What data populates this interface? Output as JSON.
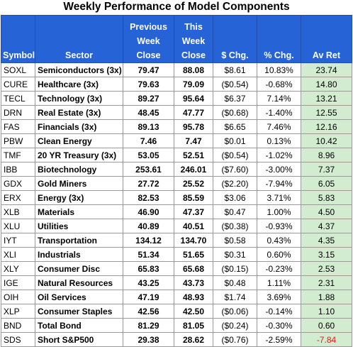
{
  "title": "Weekly Performance of Model Components",
  "colors": {
    "header_bg": "#2563d6",
    "header_text": "#ffffff",
    "positive": "#0e9e2e",
    "negative": "#e01b1b",
    "av_ret_bg": "#d2ecd0"
  },
  "headers": {
    "symbol": "Symbol",
    "sector": "Sector",
    "previous": "Previous Week Close",
    "this_week": "This Week Close",
    "dollar_chg": "$ Chg.",
    "pct_chg": "% Chg.",
    "av_ret": "Av Ret"
  },
  "rows": [
    {
      "symbol": "SOXL",
      "sector": "Semiconductors (3x)",
      "prev": "79.47",
      "curr": "88.08",
      "dchg": "$8.61",
      "pchg": "10.83%",
      "avret": "23.74",
      "dir": "pos"
    },
    {
      "symbol": "CURE",
      "sector": "Healthcare (3x)",
      "prev": "79.63",
      "curr": "79.09",
      "dchg": "($0.54)",
      "pchg": "-0.68%",
      "avret": "14.80",
      "dir": "neg"
    },
    {
      "symbol": "TECL",
      "sector": "Technology (3x)",
      "prev": "89.27",
      "curr": "95.64",
      "dchg": "$6.37",
      "pchg": "7.14%",
      "avret": "13.21",
      "dir": "pos"
    },
    {
      "symbol": "DRN",
      "sector": "Real Estate (3x)",
      "prev": "48.45",
      "curr": "47.77",
      "dchg": "($0.68)",
      "pchg": "-1.40%",
      "avret": "12.55",
      "dir": "neg"
    },
    {
      "symbol": "FAS",
      "sector": "Financials (3x)",
      "prev": "89.13",
      "curr": "95.78",
      "dchg": "$6.65",
      "pchg": "7.46%",
      "avret": "12.16",
      "dir": "pos"
    },
    {
      "symbol": "PBW",
      "sector": "Clean Energy",
      "prev": "7.46",
      "curr": "7.47",
      "dchg": "$0.01",
      "pchg": "0.13%",
      "avret": "10.42",
      "dir": "pos"
    },
    {
      "symbol": "TMF",
      "sector": "20 YR Treasury (3x)",
      "prev": "53.05",
      "curr": "52.51",
      "dchg": "($0.54)",
      "pchg": "-1.02%",
      "avret": "8.96",
      "dir": "neg"
    },
    {
      "symbol": "IBB",
      "sector": "Biotechnology",
      "prev": "253.61",
      "curr": "246.01",
      "dchg": "($7.60)",
      "pchg": "-3.00%",
      "avret": "7.37",
      "dir": "neg"
    },
    {
      "symbol": "GDX",
      "sector": "Gold Miners",
      "prev": "27.72",
      "curr": "25.52",
      "dchg": "($2.20)",
      "pchg": "-7.94%",
      "avret": "6.05",
      "dir": "neg"
    },
    {
      "symbol": "ERX",
      "sector": "Energy (3x)",
      "prev": "82.53",
      "curr": "85.59",
      "dchg": "$3.06",
      "pchg": "3.71%",
      "avret": "5.83",
      "dir": "pos"
    },
    {
      "symbol": "XLB",
      "sector": "Materials",
      "prev": "46.90",
      "curr": "47.37",
      "dchg": "$0.47",
      "pchg": "1.00%",
      "avret": "4.50",
      "dir": "pos"
    },
    {
      "symbol": "XLU",
      "sector": "Utilities",
      "prev": "40.89",
      "curr": "40.51",
      "dchg": "($0.38)",
      "pchg": "-0.93%",
      "avret": "4.37",
      "dir": "neg"
    },
    {
      "symbol": "IYT",
      "sector": "Transportation",
      "prev": "134.12",
      "curr": "134.70",
      "dchg": "$0.58",
      "pchg": "0.43%",
      "avret": "4.35",
      "dir": "pos"
    },
    {
      "symbol": "XLI",
      "sector": "Industrials",
      "prev": "51.34",
      "curr": "51.65",
      "dchg": "$0.31",
      "pchg": "0.60%",
      "avret": "3.15",
      "dir": "pos"
    },
    {
      "symbol": "XLY",
      "sector": "Consumer Disc",
      "prev": "65.83",
      "curr": "65.68",
      "dchg": "($0.15)",
      "pchg": "-0.23%",
      "avret": "2.53",
      "dir": "neg"
    },
    {
      "symbol": "IGE",
      "sector": "Natural Resources",
      "prev": "43.25",
      "curr": "43.73",
      "dchg": "$0.48",
      "pchg": "1.11%",
      "avret": "2.31",
      "dir": "pos"
    },
    {
      "symbol": "OIH",
      "sector": "Oil Services",
      "prev": "47.19",
      "curr": "48.93",
      "dchg": "$1.74",
      "pchg": "3.69%",
      "avret": "1.88",
      "dir": "pos"
    },
    {
      "symbol": "XLP",
      "sector": "Consumer Staples",
      "prev": "42.56",
      "curr": "42.50",
      "dchg": "($0.06)",
      "pchg": "-0.14%",
      "avret": "1.10",
      "dir": "neg"
    },
    {
      "symbol": "BND",
      "sector": "Total Bond",
      "prev": "81.29",
      "curr": "81.05",
      "dchg": "($0.24)",
      "pchg": "-0.30%",
      "avret": "0.60",
      "dir": "neg"
    },
    {
      "symbol": "SDS",
      "sector": "Short S&P500",
      "prev": "29.38",
      "curr": "28.62",
      "dchg": "($0.76)",
      "pchg": "-2.59%",
      "avret": "-7.84",
      "dir": "neg"
    }
  ]
}
